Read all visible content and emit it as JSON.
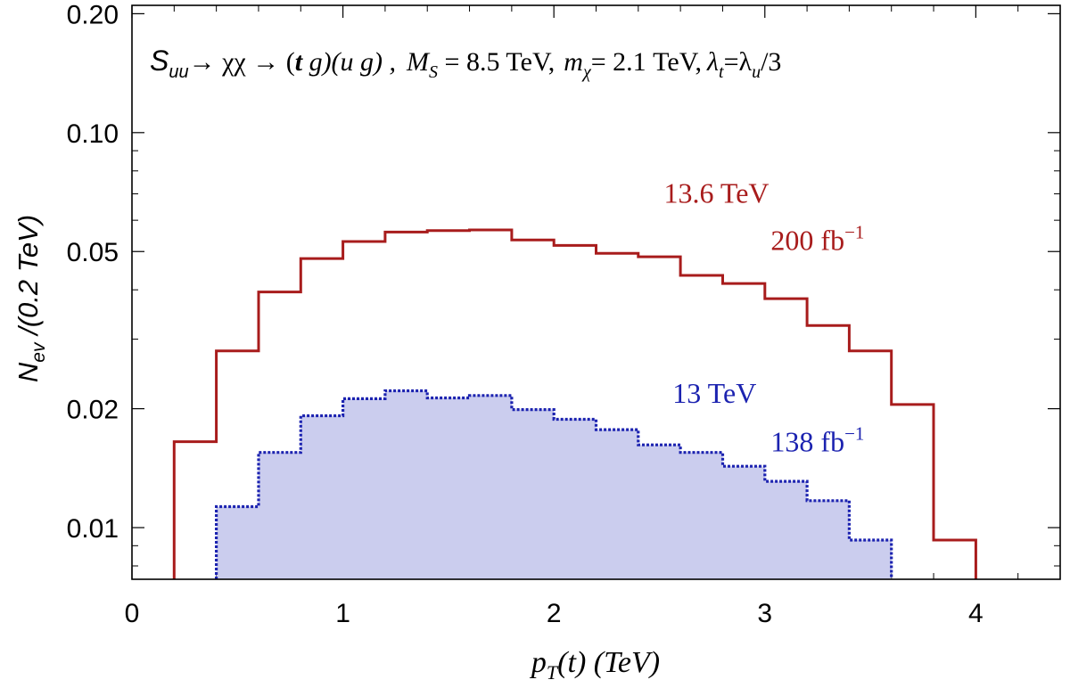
{
  "chart_data": {
    "type": "histogram",
    "yscale": "log",
    "title_parts": {
      "S": "S",
      "S_sub": "uu",
      "decay": "→ χχ → (",
      "t": "t",
      "g1": " g)(",
      "u": "u",
      "g2": " g) ,",
      "MS": "M",
      "MS_sub": "S",
      "MS_val": " = 8.5 TeV,",
      "mchi": "m",
      "mchi_sub": "χ",
      "mchi_val": "= 2.1 TeV,",
      "lam1": "λ",
      "lam1_sub": "t",
      "eq": "=λ",
      "lam2_sub": "u",
      "div": "/3"
    },
    "xlabel_parts": {
      "p": "p",
      "sub": "T",
      "rest": "(t)   (TeV)"
    },
    "ylabel_parts": {
      "N": "N",
      "sub": "ev",
      "rest": " /(0.2 TeV)"
    },
    "xlim": [
      0,
      4.4
    ],
    "ylim": [
      0.0074,
      0.21
    ],
    "xticks": [
      0,
      1,
      2,
      3,
      4
    ],
    "xtick_labels": [
      "0",
      "1",
      "2",
      "3",
      "4"
    ],
    "yticks": [
      0.01,
      0.02,
      0.05,
      0.1,
      0.2
    ],
    "ytick_labels": [
      "0.01",
      "0.02",
      "0.05",
      "0.10",
      "0.20"
    ],
    "series": [
      {
        "name": "13.6 TeV",
        "label_line1": "13.6 TeV",
        "label_line2": "200 fb",
        "label_sup": "−1",
        "style": "solid",
        "color": "#a81c1c",
        "fill": "none",
        "bin_edges": [
          0.2,
          0.4,
          0.6,
          0.8,
          1.0,
          1.2,
          1.4,
          1.6,
          1.8,
          2.0,
          2.2,
          2.4,
          2.6,
          2.8,
          3.0,
          3.2,
          3.4,
          3.6,
          3.8,
          4.0
        ],
        "values": [
          0.0165,
          0.028,
          0.0395,
          0.048,
          0.053,
          0.056,
          0.0565,
          0.0567,
          0.0535,
          0.0518,
          0.0495,
          0.0485,
          0.0435,
          0.0415,
          0.038,
          0.0325,
          0.028,
          0.0205,
          0.0093
        ]
      },
      {
        "name": "13 TeV",
        "label_line1": "13 TeV",
        "label_line2": "138 fb",
        "label_sup": "−1",
        "style": "dotted",
        "color": "#1c23b0",
        "fill": "#cbcdee",
        "bin_edges": [
          0.4,
          0.6,
          0.8,
          1.0,
          1.2,
          1.4,
          1.6,
          1.8,
          2.0,
          2.2,
          2.4,
          2.6,
          2.8,
          3.0,
          3.2,
          3.4,
          3.6
        ],
        "values": [
          0.0113,
          0.0155,
          0.0192,
          0.0212,
          0.0222,
          0.0213,
          0.0216,
          0.0199,
          0.0188,
          0.0177,
          0.0162,
          0.0155,
          0.0143,
          0.0131,
          0.0117,
          0.0093
        ]
      }
    ]
  }
}
